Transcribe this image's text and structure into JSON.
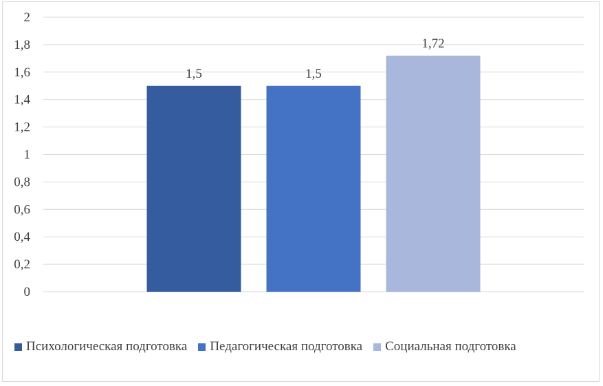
{
  "chart_data": {
    "type": "bar",
    "series": [
      {
        "name": "Психологическая подготовка",
        "value": 1.5,
        "label": "1,5",
        "color": "#345c9e"
      },
      {
        "name": "Педагогическая подготовка",
        "value": 1.5,
        "label": "1,5",
        "color": "#4472c4"
      },
      {
        "name": "Социальная подготовка",
        "value": 1.72,
        "label": "1,72",
        "color": "#a8b7db"
      }
    ],
    "ylim": [
      0,
      2
    ],
    "yticks": [
      0,
      0.2,
      0.4,
      0.6,
      0.8,
      1,
      1.2,
      1.4,
      1.6,
      1.8,
      2
    ],
    "ytick_labels": [
      "0",
      "0,2",
      "0,4",
      "0,6",
      "0,8",
      "1",
      "1,2",
      "1,4",
      "1,6",
      "1,8",
      "2"
    ],
    "grid": true,
    "legend": "bottom",
    "title": "",
    "xlabel": "",
    "ylabel": ""
  }
}
